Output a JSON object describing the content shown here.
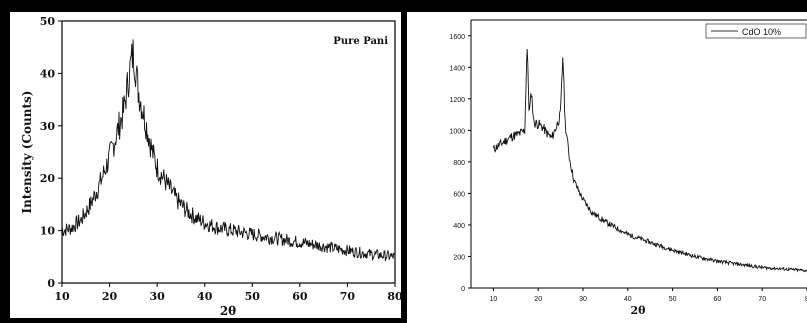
{
  "chart_data": [
    {
      "type": "line",
      "title": "",
      "legend": {
        "entries": [
          "Pure Pani"
        ],
        "placement": "top-right"
      },
      "xlabel": "2θ",
      "ylabel": "Intensity (Counts)",
      "xlim": [
        10,
        80
      ],
      "ylim": [
        0,
        50
      ],
      "xticks": [
        "10",
        "20",
        "30",
        "40",
        "50",
        "60",
        "70",
        "80"
      ],
      "yticks": [
        "0",
        "10",
        "20",
        "30",
        "40",
        "50"
      ],
      "grid": false,
      "series": [
        {
          "name": "Pure Pani",
          "x": [
            10,
            12,
            14,
            16,
            18,
            20,
            21,
            22,
            23,
            24,
            24.5,
            25,
            25.5,
            26,
            27,
            28,
            29,
            30,
            32,
            34,
            36,
            38,
            40,
            43,
            46,
            50,
            55,
            60,
            65,
            70,
            75,
            80
          ],
          "y": [
            10,
            10.5,
            12,
            15,
            19,
            24,
            27,
            30,
            33,
            39,
            42,
            44,
            41,
            37,
            33,
            29,
            25,
            22,
            19,
            16,
            14,
            12.5,
            11.5,
            10.5,
            10,
            9.3,
            8.5,
            7.8,
            7,
            6.2,
            5.5,
            5
          ]
        }
      ]
    },
    {
      "type": "line",
      "title": "",
      "legend": {
        "entries": [
          "CdO 10%"
        ],
        "placement": "top-right"
      },
      "xlabel": "2θ",
      "ylabel": "",
      "xlim": [
        5,
        80
      ],
      "ylim": [
        0,
        1700
      ],
      "xticks": [
        "10",
        "20",
        "30",
        "40",
        "50",
        "60",
        "70",
        "8"
      ],
      "yticks": [
        "0",
        "200",
        "400",
        "600",
        "800",
        "1000",
        "1200",
        "1400",
        "1600"
      ],
      "grid": false,
      "series": [
        {
          "name": "CdO 10%",
          "x": [
            10,
            12,
            14,
            16,
            17,
            17.5,
            18,
            18.5,
            19,
            20,
            21,
            22,
            23,
            24,
            25,
            25.5,
            26,
            27,
            28,
            30,
            32,
            35,
            40,
            45,
            50,
            55,
            60,
            65,
            70,
            75,
            80
          ],
          "y": [
            880,
            920,
            960,
            980,
            1000,
            1550,
            1100,
            1250,
            1050,
            1040,
            1020,
            980,
            950,
            1020,
            1100,
            1490,
            1050,
            820,
            680,
            560,
            480,
            420,
            340,
            290,
            240,
            200,
            170,
            150,
            130,
            120,
            110
          ]
        }
      ]
    }
  ]
}
